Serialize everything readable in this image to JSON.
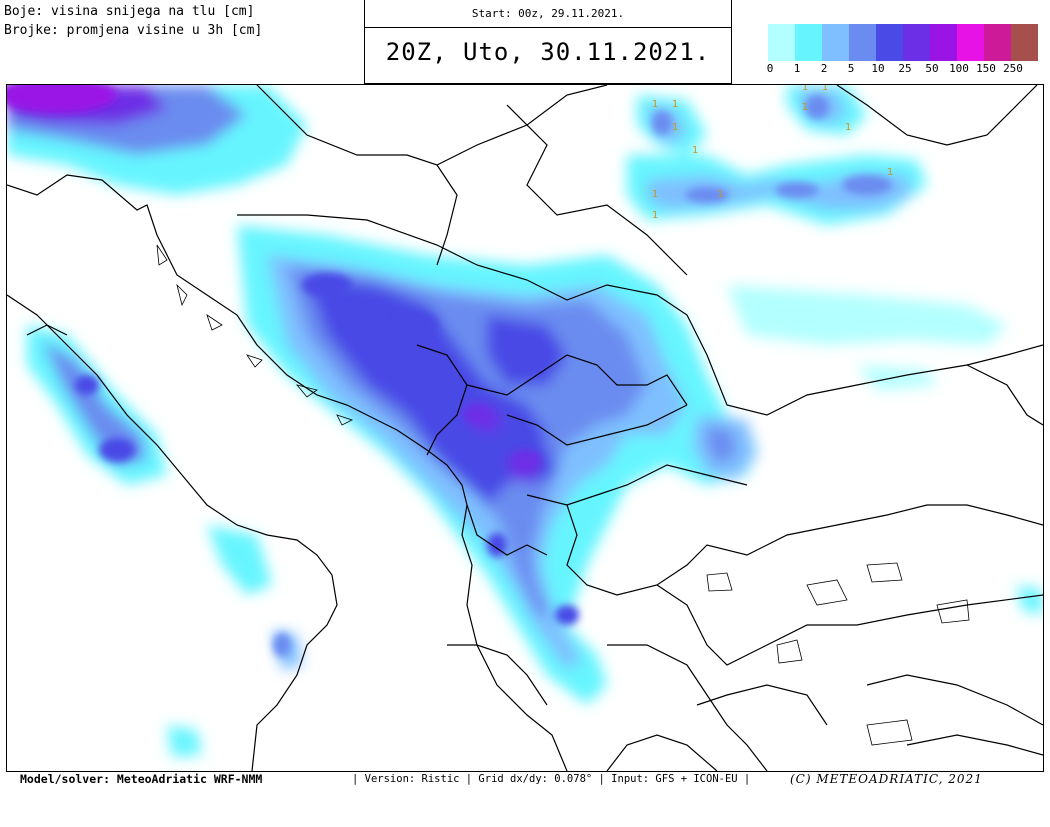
{
  "header": {
    "legend_line1": "Boje: visina snijega na tlu [cm]",
    "legend_line2": "Brojke: promjena visine u 3h [cm]",
    "start": "Start: 00z, 29.11.2021.",
    "valid": "20Z, Uto, 30.11.2021."
  },
  "scale": {
    "labels": [
      "0",
      "1",
      "2",
      "5",
      "10",
      "25",
      "50",
      "100",
      "150",
      "250"
    ],
    "colors": [
      "#b3ffff",
      "#66f5ff",
      "#7fbfff",
      "#6a8cf0",
      "#4a4ae6",
      "#6d2fe6",
      "#9a14e6",
      "#e612e6",
      "#cc1a99",
      "#a6504d"
    ]
  },
  "snow_change_markers": [
    "1",
    "1",
    "1",
    "1",
    "1",
    "1",
    "1",
    "1",
    "1",
    "1",
    "1",
    "1"
  ],
  "footer": {
    "model": "Model/solver: MeteoAdriatic WRF-NMM",
    "meta": "| Version: Ristic | Grid dx/dy: 0.078° | Input: GFS + ICON-EU |",
    "copyright": "(C) METEOADRIATIC, 2021"
  }
}
